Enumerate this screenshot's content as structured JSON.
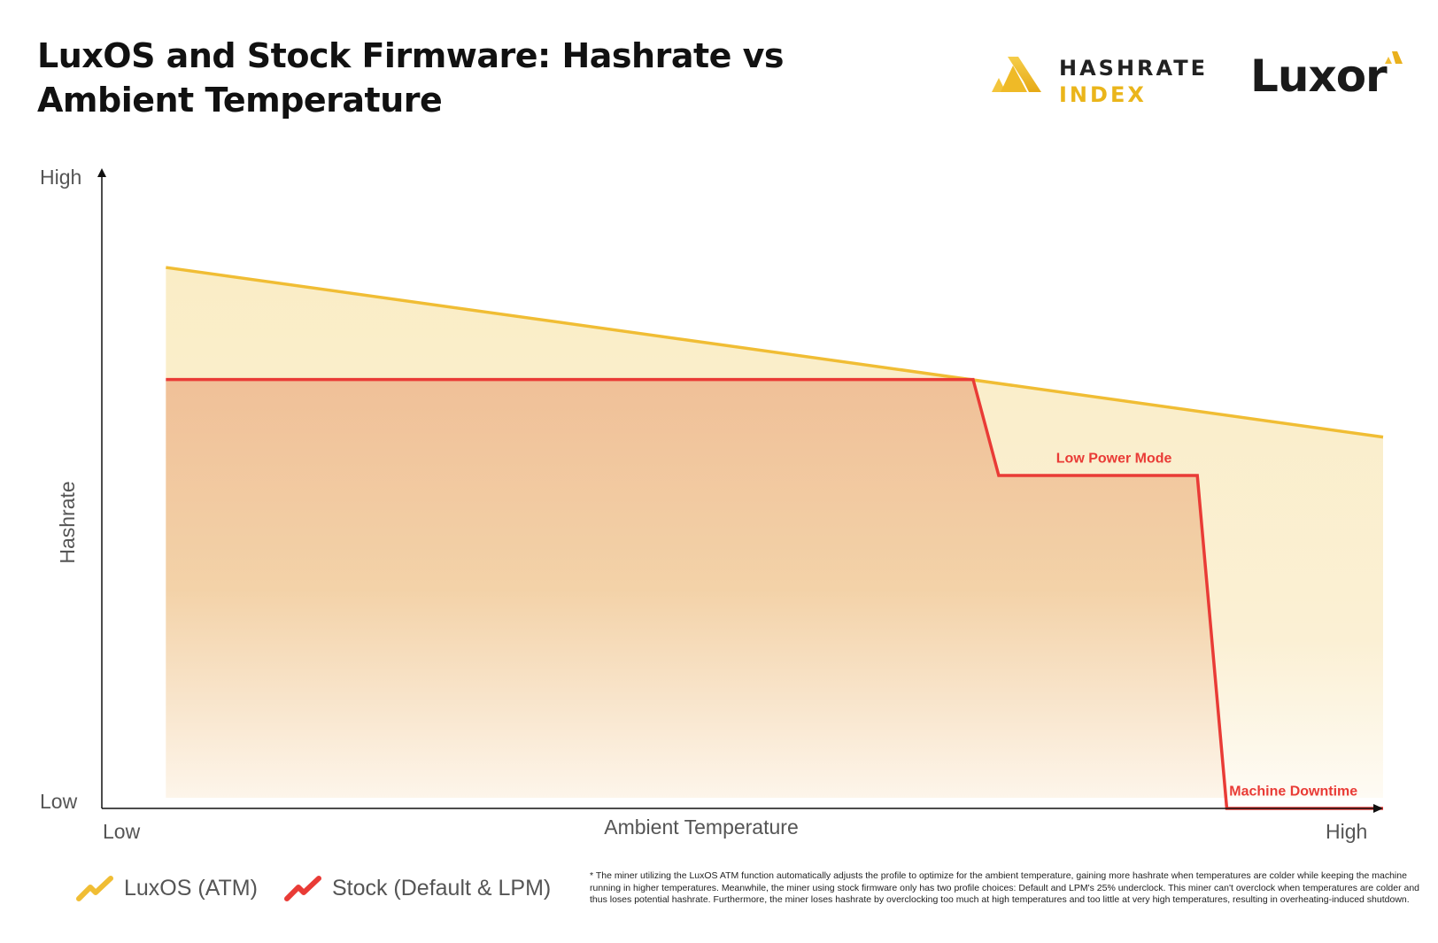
{
  "title": "LuxOS and Stock Firmware: Hashrate vs Ambient Temperature",
  "brand": {
    "hashrate_index_line1": "HASHRATE",
    "hashrate_index_line2": "INDEX",
    "luxor": "Luxor"
  },
  "colors": {
    "luxos": "#f0bd34",
    "stock": "#e93b36",
    "luxos_fill": "#faedc8",
    "stock_fill": "#f0c39c",
    "brand_gold": "#eab51b"
  },
  "chart_data": {
    "type": "line",
    "xlabel": "Ambient Temperature",
    "ylabel": "Hashrate",
    "x_tick_labels": [
      "Low",
      "High"
    ],
    "y_tick_labels": [
      "Low",
      "High"
    ],
    "xlim": [
      0,
      1
    ],
    "ylim": [
      0,
      1
    ],
    "grid": false,
    "legend_position": "bottom-left",
    "series": [
      {
        "name": "LuxOS (ATM)",
        "color": "#f0bd34",
        "filled": true,
        "points": [
          [
            0.05,
            0.845
          ],
          [
            0.66,
            0.675
          ],
          [
            1.0,
            0.58
          ]
        ]
      },
      {
        "name": "Stock (Default & LPM)",
        "color": "#e93b36",
        "filled": true,
        "points": [
          [
            0.05,
            0.67
          ],
          [
            0.68,
            0.67
          ],
          [
            0.7,
            0.52
          ],
          [
            0.855,
            0.52
          ],
          [
            0.878,
            0.0
          ],
          [
            1.0,
            0.0
          ]
        ]
      }
    ],
    "annotations": [
      {
        "text": "Low Power Mode",
        "x": 0.79,
        "y": 0.54,
        "color": "#e93b36"
      },
      {
        "text": "Machine Downtime",
        "x": 0.93,
        "y": 0.02,
        "color": "#e93b36"
      }
    ]
  },
  "legend": {
    "items": [
      {
        "label": "LuxOS (ATM)",
        "color": "#f0bd34"
      },
      {
        "label": "Stock (Default & LPM)",
        "color": "#e93b36"
      }
    ]
  },
  "footnote": "* The miner utilizing the LuxOS ATM function automatically adjusts the profile to optimize for the ambient temperature, gaining more hashrate when temperatures are colder while keeping the machine running in higher temperatures. Meanwhile, the miner using stock firmware only has two profile choices: Default and LPM's 25% underclock. This miner can't overclock when temperatures are colder and thus loses potential hashrate. Furthermore, the miner loses hashrate by overclocking too much at high temperatures and too little at very high temperatures, resulting in overheating-induced shutdown."
}
